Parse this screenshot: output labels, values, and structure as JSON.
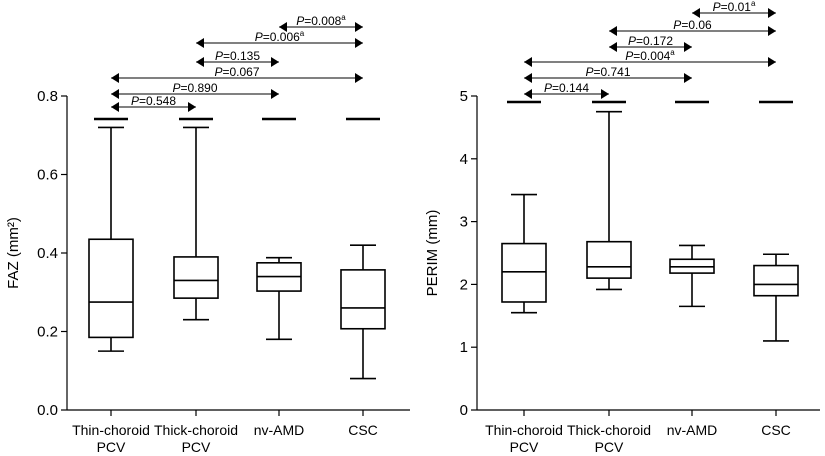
{
  "chart_data": [
    {
      "type": "boxplot",
      "ylabel": "FAZ (mm²)",
      "ylim": [
        0,
        0.8
      ],
      "yticks": [
        "0.0",
        "0.2",
        "0.4",
        "0.6",
        "0.8"
      ],
      "categories": [
        {
          "line1": "Thin-choroid",
          "line2": "PCV"
        },
        {
          "line1": "Thick-choroid",
          "line2": "PCV"
        },
        {
          "line1": "nv-AMD",
          "line2": ""
        },
        {
          "line1": "CSC",
          "line2": ""
        }
      ],
      "boxes": [
        {
          "min": 0.15,
          "q1": 0.185,
          "median": 0.275,
          "q3": 0.435,
          "max": 0.72
        },
        {
          "min": 0.23,
          "q1": 0.285,
          "median": 0.33,
          "q3": 0.39,
          "max": 0.72
        },
        {
          "min": 0.18,
          "q1": 0.303,
          "median": 0.34,
          "q3": 0.375,
          "max": 0.388
        },
        {
          "min": 0.08,
          "q1": 0.207,
          "median": 0.26,
          "q3": 0.357,
          "max": 0.42
        }
      ],
      "comparisons": [
        {
          "from": 0,
          "to": 1,
          "p": "0.548",
          "sup": ""
        },
        {
          "from": 0,
          "to": 2,
          "p": "0.890",
          "sup": ""
        },
        {
          "from": 0,
          "to": 3,
          "p": "0.067",
          "sup": ""
        },
        {
          "from": 1,
          "to": 2,
          "p": "0.135",
          "sup": ""
        },
        {
          "from": 1,
          "to": 3,
          "p": "0.006",
          "sup": "a"
        },
        {
          "from": 2,
          "to": 3,
          "p": "0.008",
          "sup": "a"
        }
      ]
    },
    {
      "type": "boxplot",
      "ylabel": "PERIM (mm)",
      "ylim": [
        0,
        5
      ],
      "yticks": [
        "0",
        "1",
        "2",
        "3",
        "4",
        "5"
      ],
      "categories": [
        {
          "line1": "Thin-choroid",
          "line2": "PCV"
        },
        {
          "line1": "Thick-choroid",
          "line2": "PCV"
        },
        {
          "line1": "nv-AMD",
          "line2": ""
        },
        {
          "line1": "CSC",
          "line2": ""
        }
      ],
      "boxes": [
        {
          "min": 1.55,
          "q1": 1.72,
          "median": 2.2,
          "q3": 2.65,
          "max": 3.43
        },
        {
          "min": 1.92,
          "q1": 2.1,
          "median": 2.28,
          "q3": 2.68,
          "max": 4.75
        },
        {
          "min": 1.65,
          "q1": 2.18,
          "median": 2.28,
          "q3": 2.4,
          "max": 2.62
        },
        {
          "min": 1.1,
          "q1": 1.82,
          "median": 2.0,
          "q3": 2.3,
          "max": 2.48
        }
      ],
      "comparisons": [
        {
          "from": 0,
          "to": 1,
          "p": "0.144",
          "sup": ""
        },
        {
          "from": 0,
          "to": 2,
          "p": "0.741",
          "sup": ""
        },
        {
          "from": 0,
          "to": 3,
          "p": "0.004",
          "sup": "a"
        },
        {
          "from": 1,
          "to": 2,
          "p": "0.172",
          "sup": ""
        },
        {
          "from": 1,
          "to": 3,
          "p": "0.06",
          "sup": ""
        },
        {
          "from": 2,
          "to": 3,
          "p": "0.01",
          "sup": "a"
        }
      ]
    }
  ],
  "labels": {
    "p_prefix": "P",
    "equals": "="
  }
}
